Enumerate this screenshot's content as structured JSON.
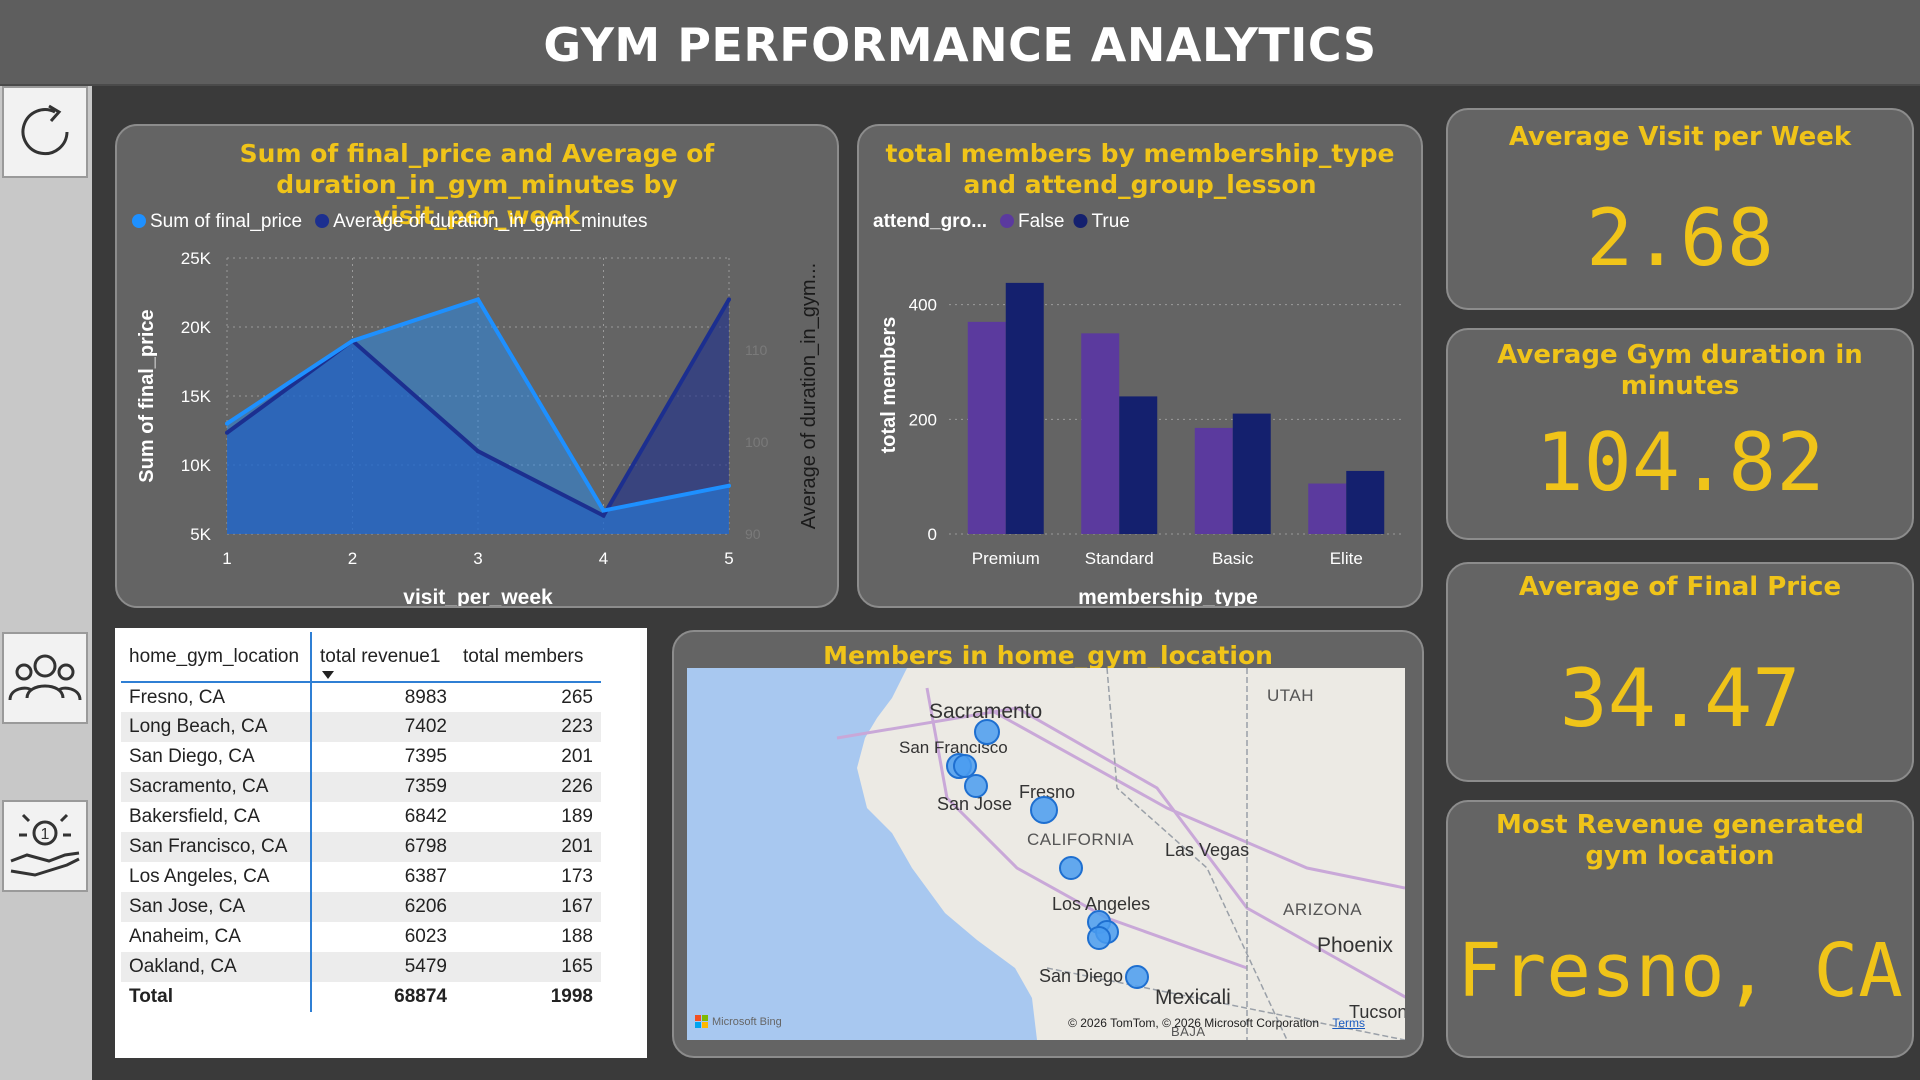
{
  "header": {
    "title": "GYM PERFORMANCE ANALYTICS"
  },
  "nav": {
    "refresh_icon": "refresh-icon",
    "members_icon": "people-group-icon",
    "service_icon": "hand-service-icon"
  },
  "colors": {
    "accent": "#f0c419",
    "series_light": "#1e90ff",
    "series_dark": "#1c2f8f",
    "bar_false": "#5b3a9e",
    "bar_true": "#14206e"
  },
  "combo_chart": {
    "title": "Sum of final_price and Average of duration_in_gym_minutes by visit_per_week",
    "legend": [
      "Sum of final_price",
      "Average of duration_in_gym_minutes"
    ]
  },
  "bar_chart": {
    "title": "total members by membership_type and attend_group_lesson",
    "legend_title": "attend_gro...",
    "legend": [
      "False",
      "True"
    ]
  },
  "chart_data": [
    {
      "type": "area",
      "title": "Sum of final_price and Average of duration_in_gym_minutes by visit_per_week",
      "xlabel": "visit_per_week",
      "ylabel": "Sum of final_price",
      "y2label": "Average of duration_in_gym...",
      "x": [
        1,
        2,
        3,
        4,
        5
      ],
      "ylim": [
        5000,
        25000
      ],
      "yticks": [
        "5K",
        "10K",
        "15K",
        "20K",
        "25K"
      ],
      "y2lim": [
        90,
        120
      ],
      "y2ticks": [
        "90",
        "100",
        "110"
      ],
      "series": [
        {
          "name": "Sum of final_price",
          "axis": "left",
          "color": "#1e90ff",
          "values": [
            13000,
            19000,
            22000,
            6700,
            8500
          ]
        },
        {
          "name": "Average of duration_in_gym_minutes",
          "axis": "right",
          "color": "#1c2f8f",
          "values": [
            101,
            111,
            99,
            92,
            115.5
          ]
        }
      ],
      "grid": true,
      "legend": "top-left"
    },
    {
      "type": "bar",
      "title": "total members by membership_type and attend_group_lesson",
      "xlabel": "membership_type",
      "ylabel": "total members",
      "categories": [
        "Premium",
        "Standard",
        "Basic",
        "Elite"
      ],
      "ylim": [
        0,
        450
      ],
      "yticks": [
        "0",
        "200",
        "400"
      ],
      "series": [
        {
          "name": "False",
          "color": "#5b3a9e",
          "values": [
            370,
            350,
            185,
            88
          ]
        },
        {
          "name": "True",
          "color": "#14206e",
          "values": [
            438,
            240,
            210,
            110
          ]
        }
      ],
      "legend_title": "attend_gro...",
      "grid": true,
      "legend": "top-left"
    }
  ],
  "kpis": [
    {
      "title": "Average Visit per Week",
      "value": "2.68"
    },
    {
      "title": "Average Gym duration in minutes",
      "value": "104.82"
    },
    {
      "title": "Average of Final Price",
      "value": "34.47"
    },
    {
      "title": "Most Revenue generated gym location",
      "value": "Fresno, CA"
    }
  ],
  "table": {
    "columns": [
      "home_gym_location",
      "total revenue1",
      "total members"
    ],
    "rows": [
      [
        "Fresno, CA",
        "8983",
        "265"
      ],
      [
        "Long Beach, CA",
        "7402",
        "223"
      ],
      [
        "San Diego, CA",
        "7395",
        "201"
      ],
      [
        "Sacramento, CA",
        "7359",
        "226"
      ],
      [
        "Bakersfield, CA",
        "6842",
        "189"
      ],
      [
        "San Francisco, CA",
        "6798",
        "201"
      ],
      [
        "Los Angeles, CA",
        "6387",
        "173"
      ],
      [
        "San Jose, CA",
        "6206",
        "167"
      ],
      [
        "Anaheim, CA",
        "6023",
        "188"
      ],
      [
        "Oakland, CA",
        "5479",
        "165"
      ]
    ],
    "total": [
      "Total",
      "68874",
      "1998"
    ]
  },
  "map": {
    "title": "Members in home_gym_location",
    "labels": [
      "Sacramento",
      "San Francisco",
      "San Jose",
      "Fresno",
      "CALIFORNIA",
      "Las Vegas",
      "Los Angeles",
      "ARIZONA",
      "Phoenix",
      "San Diego",
      "Mexicali",
      "Tucson",
      "UTAH",
      "BAJA"
    ],
    "attribution": "© 2026 TomTom, © 2026 Microsoft Corporation",
    "terms": "Terms",
    "brand": "Microsoft Bing"
  }
}
